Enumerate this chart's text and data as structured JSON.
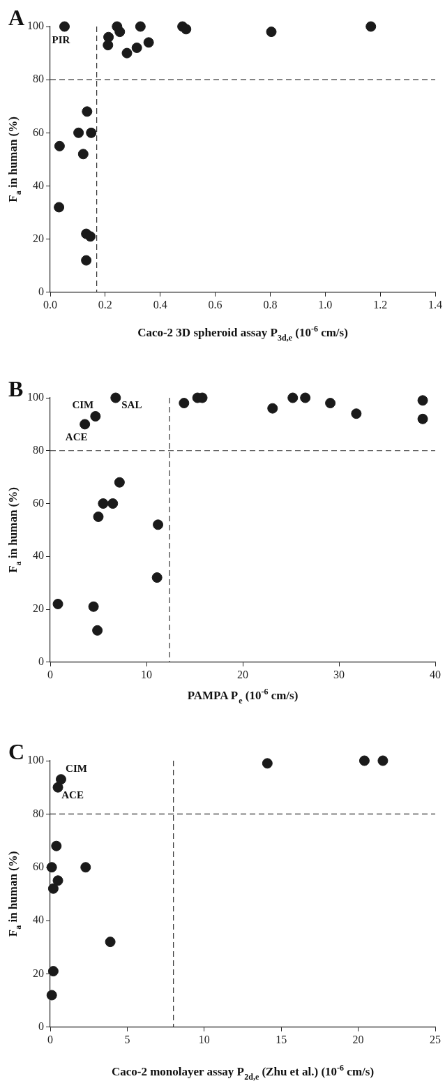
{
  "chart_data": [
    {
      "type": "scatter",
      "xlabel": "Caco-2 3D spheroid assay P$_{3d,e}$ (10$^{-6}$ cm/s)",
      "ylabel": "F$_{a}$ in human (%)",
      "color": "#1a1a1a",
      "marker": "circle",
      "x": [
        0.052,
        0.243,
        0.253,
        0.212,
        0.21,
        0.279,
        0.315,
        0.328,
        0.358,
        0.481,
        0.494,
        0.804,
        1.166,
        0.134,
        0.103,
        0.149,
        0.034,
        0.12,
        0.032,
        0.131,
        0.146,
        0.131
      ],
      "values": [
        100,
        100,
        98,
        96,
        93,
        90,
        92,
        100,
        94,
        100,
        99,
        98,
        100,
        68,
        60,
        60,
        55,
        52,
        32,
        22,
        21,
        12
      ],
      "xlim": [
        0,
        1.4
      ],
      "xticks": [
        {
          "value": 0,
          "label": "0.0"
        },
        0.2,
        0.4,
        0.6,
        0.8,
        {
          "value": 1,
          "label": "1.0"
        },
        1.2,
        1.4
      ],
      "ylim": [
        0,
        100
      ],
      "yticks": [
        0,
        20,
        40,
        60,
        80,
        100
      ],
      "ref_lines": [
        {
          "axis": "x",
          "value": 0.169,
          "line_style": "dashed"
        },
        {
          "axis": "y",
          "value": 80,
          "line_style": "dashed"
        }
      ],
      "annotations": [
        "A",
        {
          "text": "PIR",
          "x": 0.052,
          "y": 100
        }
      ]
    },
    {
      "type": "scatter",
      "xlabel": "PAMPA P$_{e}$ (10$^{-6}$ cm/s)",
      "ylabel": "F$_{a}$ in human (%)",
      "color": "#1a1a1a",
      "marker": "circle",
      "x": [
        0.8,
        3.6,
        4.7,
        6.8,
        4.5,
        4.9,
        5.0,
        5.5,
        6.5,
        7.2,
        11.2,
        11.1,
        13.9,
        15.3,
        15.8,
        23.1,
        25.2,
        26.5,
        29.1,
        31.8,
        38.7,
        38.7
      ],
      "values": [
        22,
        90,
        93,
        100,
        21,
        12,
        55,
        60,
        60,
        68,
        52,
        32,
        98,
        100,
        100,
        96,
        100,
        100,
        98,
        94,
        99,
        92
      ],
      "xlim": [
        0,
        40
      ],
      "xticks": [
        0,
        10,
        20,
        30,
        40
      ],
      "ylim": [
        0,
        100
      ],
      "yticks": [
        0,
        20,
        40,
        60,
        80,
        100
      ],
      "ref_lines": [
        {
          "axis": "x",
          "value": 12.4,
          "line_style": "dashed"
        },
        {
          "axis": "y",
          "value": 80,
          "line_style": "dashed"
        }
      ],
      "annotations": [
        "B",
        {
          "text": "CIM",
          "x": 4.7,
          "y": 93
        },
        {
          "text": "SAL",
          "x": 6.8,
          "y": 100
        },
        {
          "text": "ACE",
          "x": 3.6,
          "y": 90
        }
      ]
    },
    {
      "type": "scatter",
      "xlabel": "Caco-2 monolayer assay P$_{2d,e}$ (Zhu et al.) (10$^{-6}$ cm/s)",
      "ylabel": "F$_{a}$ in human (%)",
      "color": "#1a1a1a",
      "marker": "circle",
      "x": [
        0.1,
        0.2,
        0.2,
        0.5,
        0.1,
        2.3,
        0.4,
        3.9,
        0.5,
        0.7,
        14.1,
        20.4,
        21.6
      ],
      "values": [
        12,
        21,
        52,
        55,
        60,
        60,
        68,
        32,
        90,
        93,
        99,
        100,
        100
      ],
      "xlim": [
        0,
        25
      ],
      "xticks": [
        0,
        5,
        10,
        15,
        20,
        25
      ],
      "ylim": [
        0,
        100
      ],
      "yticks": [
        0,
        20,
        40,
        60,
        80,
        100
      ],
      "ref_lines": [
        {
          "axis": "x",
          "value": 8.0,
          "line_style": "dashed"
        },
        {
          "axis": "y",
          "value": 80,
          "line_style": "dashed"
        }
      ],
      "annotations": [
        "C",
        {
          "text": "CIM",
          "x": 0.7,
          "y": 93
        },
        {
          "text": "ACE",
          "x": 0.5,
          "y": 90
        }
      ]
    }
  ]
}
